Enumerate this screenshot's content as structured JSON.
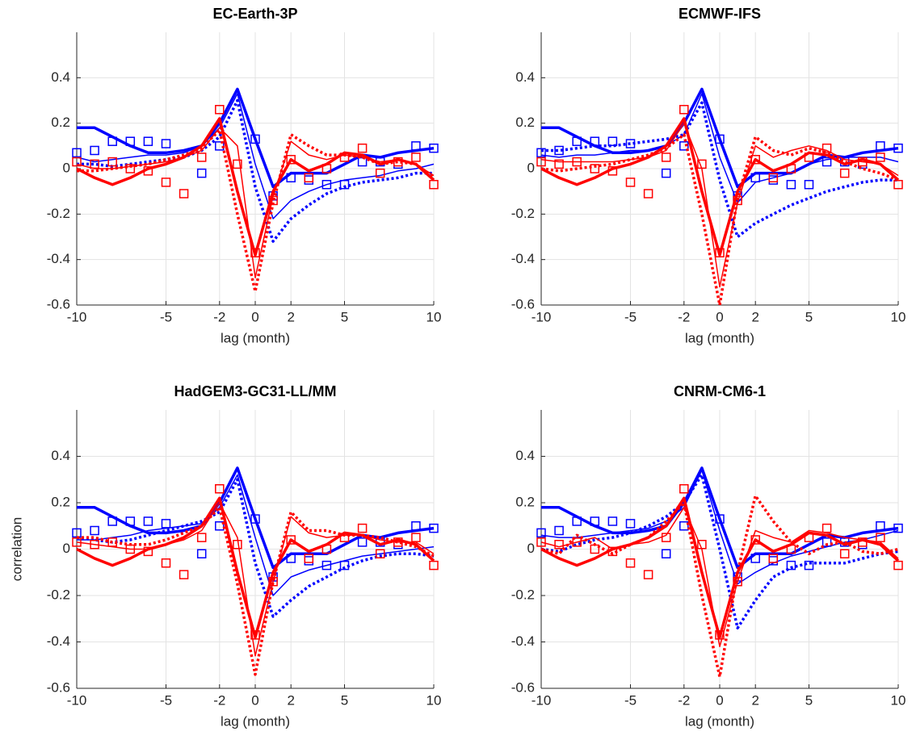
{
  "chart_data": [
    {
      "type": "line",
      "title": "EC-Earth-3P",
      "xlabel": "lag (month)",
      "x": [
        -10,
        -9,
        -8,
        -7,
        -6,
        -5,
        -4,
        -3,
        -2,
        -1,
        0,
        1,
        2,
        3,
        4,
        5,
        6,
        7,
        8,
        9,
        10
      ],
      "xlim": [
        -10,
        10
      ],
      "ylim": [
        -0.6,
        0.6
      ],
      "xticks": [
        -10,
        -5,
        -2,
        0,
        2,
        5,
        10
      ],
      "yticks": [
        -0.6,
        -0.4,
        -0.2,
        0,
        0.2,
        0.4
      ],
      "grid": true,
      "series": [
        {
          "color": "#0000ff",
          "width": 3.5,
          "dash": "solid",
          "values": [
            0.18,
            0.18,
            0.14,
            0.1,
            0.07,
            0.07,
            0.08,
            0.1,
            0.2,
            0.35,
            0.13,
            -0.08,
            -0.02,
            -0.02,
            -0.02,
            0.02,
            0.06,
            0.05,
            0.07,
            0.08,
            0.09
          ]
        },
        {
          "color": "#0000ff",
          "width": 1.5,
          "dash": "solid",
          "values": [
            0.05,
            0.03,
            0.04,
            0.05,
            0.06,
            0.06,
            0.07,
            0.1,
            0.18,
            0.33,
            0.02,
            -0.22,
            -0.14,
            -0.1,
            -0.07,
            -0.05,
            -0.04,
            -0.03,
            -0.01,
            0,
            0.02
          ]
        },
        {
          "color": "#0000ff",
          "width": 3.5,
          "dash": "dotted",
          "values": [
            0.02,
            0.02,
            0.01,
            0.02,
            0.03,
            0.04,
            0.05,
            0.08,
            0.14,
            0.3,
            -0.08,
            -0.32,
            -0.22,
            -0.16,
            -0.11,
            -0.08,
            -0.06,
            -0.05,
            -0.04,
            -0.02,
            -0.02
          ]
        },
        {
          "color": "#0000ff",
          "marker": "square",
          "values": [
            0.07,
            0.08,
            0.12,
            0.12,
            0.12,
            0.11,
            null,
            -0.02,
            0.1,
            null,
            0.13,
            -0.12,
            -0.04,
            -0.05,
            -0.07,
            -0.07,
            0.03,
            0.03,
            0.02,
            0.1,
            0.09
          ]
        },
        {
          "color": "#ff0000",
          "width": 3.5,
          "dash": "solid",
          "values": [
            0,
            -0.04,
            -0.07,
            -0.04,
            0,
            0.02,
            0.05,
            0.1,
            0.22,
            -0.1,
            -0.38,
            -0.1,
            0.04,
            -0.01,
            0.02,
            0.07,
            0.06,
            0.02,
            0.04,
            0.02,
            -0.05
          ]
        },
        {
          "color": "#ff0000",
          "width": 1.5,
          "dash": "solid",
          "values": [
            0.02,
            0,
            0,
            0.01,
            0.02,
            0.03,
            0.05,
            0.08,
            0.18,
            0.1,
            -0.48,
            -0.12,
            0.12,
            0.06,
            0.04,
            0.06,
            0.05,
            0.03,
            0.04,
            0.02,
            -0.03
          ]
        },
        {
          "color": "#ff0000",
          "width": 3.5,
          "dash": "dotted",
          "values": [
            -0.01,
            -0.01,
            0,
            0.01,
            0.02,
            0.04,
            0.06,
            0.09,
            0.17,
            -0.2,
            -0.54,
            -0.15,
            0.15,
            0.1,
            0.06,
            0.06,
            0.05,
            0.02,
            0.03,
            0.02,
            -0.04
          ]
        },
        {
          "color": "#ff0000",
          "marker": "square",
          "values": [
            0.03,
            0.02,
            0.03,
            0,
            -0.01,
            -0.06,
            -0.11,
            0.05,
            0.26,
            0.02,
            -0.37,
            -0.14,
            0.04,
            -0.04,
            0,
            0.05,
            0.09,
            -0.02,
            0.03,
            0.05,
            -0.07
          ]
        }
      ]
    },
    {
      "type": "line",
      "title": "ECMWF-IFS",
      "xlabel": "lag (month)",
      "x": [
        -10,
        -9,
        -8,
        -7,
        -6,
        -5,
        -4,
        -3,
        -2,
        -1,
        0,
        1,
        2,
        3,
        4,
        5,
        6,
        7,
        8,
        9,
        10
      ],
      "xlim": [
        -10,
        10
      ],
      "ylim": [
        -0.6,
        0.6
      ],
      "xticks": [
        -10,
        -5,
        -2,
        0,
        2,
        5,
        10
      ],
      "yticks": [
        -0.6,
        -0.4,
        -0.2,
        0,
        0.2,
        0.4
      ],
      "grid": true,
      "series": [
        {
          "color": "#0000ff",
          "width": 3.5,
          "dash": "solid",
          "values": [
            0.18,
            0.18,
            0.14,
            0.1,
            0.07,
            0.07,
            0.08,
            0.1,
            0.2,
            0.35,
            0.13,
            -0.08,
            -0.02,
            -0.02,
            -0.02,
            0.02,
            0.06,
            0.05,
            0.07,
            0.08,
            0.09
          ]
        },
        {
          "color": "#0000ff",
          "width": 1.5,
          "dash": "solid",
          "values": [
            0.06,
            0.05,
            0.06,
            0.06,
            0.07,
            0.08,
            0.08,
            0.1,
            0.15,
            0.33,
            0.05,
            -0.15,
            -0.06,
            -0.04,
            -0.02,
            0.02,
            0.04,
            0.05,
            0.05,
            0.05,
            0.03
          ]
        },
        {
          "color": "#0000ff",
          "width": 3.5,
          "dash": "dotted",
          "values": [
            0.08,
            0.08,
            0.09,
            0.1,
            0.1,
            0.11,
            0.12,
            0.13,
            0.15,
            0.29,
            -0.05,
            -0.3,
            -0.24,
            -0.2,
            -0.16,
            -0.13,
            -0.1,
            -0.08,
            -0.06,
            -0.05,
            -0.05
          ]
        },
        {
          "color": "#0000ff",
          "marker": "square",
          "values": [
            0.07,
            0.08,
            0.12,
            0.12,
            0.12,
            0.11,
            null,
            -0.02,
            0.1,
            null,
            0.13,
            -0.12,
            -0.04,
            -0.05,
            -0.07,
            -0.07,
            0.03,
            0.03,
            0.02,
            0.1,
            0.09
          ]
        },
        {
          "color": "#ff0000",
          "width": 3.5,
          "dash": "solid",
          "values": [
            0,
            -0.04,
            -0.07,
            -0.04,
            0,
            0.02,
            0.05,
            0.1,
            0.22,
            -0.1,
            -0.38,
            -0.1,
            0.04,
            -0.01,
            0.02,
            0.07,
            0.06,
            0.02,
            0.04,
            0.02,
            -0.05
          ]
        },
        {
          "color": "#ff0000",
          "width": 1.5,
          "dash": "solid",
          "values": [
            0.04,
            0.03,
            0.03,
            0.03,
            0.03,
            0.04,
            0.05,
            0.08,
            0.2,
            0,
            -0.52,
            -0.15,
            0.1,
            0.05,
            0.08,
            0.1,
            0.08,
            0.04,
            0.03,
            0.02,
            -0.03
          ]
        },
        {
          "color": "#ff0000",
          "width": 3.5,
          "dash": "dotted",
          "values": [
            0,
            -0.01,
            0,
            0.01,
            0.02,
            0.04,
            0.06,
            0.09,
            0.15,
            -0.2,
            -0.6,
            -0.13,
            0.14,
            0.08,
            0.06,
            0.09,
            0.07,
            0.03,
            0,
            -0.02,
            -0.05
          ]
        },
        {
          "color": "#ff0000",
          "marker": "square",
          "values": [
            0.03,
            0.02,
            0.03,
            0,
            -0.01,
            -0.06,
            -0.11,
            0.05,
            0.26,
            0.02,
            -0.37,
            -0.14,
            0.04,
            -0.04,
            0,
            0.05,
            0.09,
            -0.02,
            0.03,
            0.05,
            -0.07
          ]
        }
      ]
    },
    {
      "type": "line",
      "title": "HadGEM3-GC31-LL/MM",
      "xlabel": "lag (month)",
      "ylabel": "correlation",
      "x": [
        -10,
        -9,
        -8,
        -7,
        -6,
        -5,
        -4,
        -3,
        -2,
        -1,
        0,
        1,
        2,
        3,
        4,
        5,
        6,
        7,
        8,
        9,
        10
      ],
      "xlim": [
        -10,
        10
      ],
      "ylim": [
        -0.6,
        0.6
      ],
      "xticks": [
        -10,
        -5,
        -2,
        0,
        2,
        5,
        10
      ],
      "yticks": [
        -0.6,
        -0.4,
        -0.2,
        0,
        0.2,
        0.4
      ],
      "grid": true,
      "series": [
        {
          "color": "#0000ff",
          "width": 3.5,
          "dash": "solid",
          "values": [
            0.18,
            0.18,
            0.14,
            0.1,
            0.07,
            0.07,
            0.08,
            0.1,
            0.2,
            0.35,
            0.13,
            -0.08,
            -0.02,
            -0.02,
            -0.02,
            0.02,
            0.06,
            0.05,
            0.07,
            0.08,
            0.09
          ]
        },
        {
          "color": "#0000ff",
          "width": 1.5,
          "dash": "solid",
          "values": [
            0.04,
            0.04,
            0.05,
            0.06,
            0.08,
            0.09,
            0.1,
            0.11,
            0.18,
            0.32,
            0.05,
            -0.2,
            -0.12,
            -0.09,
            -0.07,
            -0.05,
            -0.03,
            -0.02,
            -0.01,
            0,
            0.01
          ]
        },
        {
          "color": "#0000ff",
          "width": 3.5,
          "dash": "dotted",
          "values": [
            0.05,
            0.04,
            0.03,
            0.04,
            0.06,
            0.08,
            0.1,
            0.12,
            0.16,
            0.3,
            -0.06,
            -0.29,
            -0.22,
            -0.16,
            -0.12,
            -0.08,
            -0.05,
            -0.03,
            -0.02,
            -0.02,
            -0.03
          ]
        },
        {
          "color": "#0000ff",
          "marker": "square",
          "values": [
            0.07,
            0.08,
            0.12,
            0.12,
            0.12,
            0.11,
            null,
            -0.02,
            0.1,
            null,
            0.13,
            -0.12,
            -0.04,
            -0.05,
            -0.07,
            -0.07,
            0.03,
            0.03,
            0.02,
            0.1,
            0.09
          ]
        },
        {
          "color": "#ff0000",
          "width": 3.5,
          "dash": "solid",
          "values": [
            0,
            -0.04,
            -0.07,
            -0.04,
            0,
            0.02,
            0.05,
            0.1,
            0.22,
            -0.1,
            -0.38,
            -0.1,
            0.04,
            -0.01,
            0.02,
            0.07,
            0.06,
            0.02,
            0.04,
            0.02,
            -0.05
          ]
        },
        {
          "color": "#ff0000",
          "width": 1.5,
          "dash": "solid",
          "values": [
            0.03,
            0.02,
            0.01,
            0,
            0,
            0.02,
            0.04,
            0.08,
            0.2,
            0.05,
            -0.46,
            -0.14,
            0.14,
            0.07,
            0.05,
            0.06,
            0.06,
            0.04,
            0.03,
            0.03,
            -0.02
          ]
        },
        {
          "color": "#ff0000",
          "width": 3.5,
          "dash": "dotted",
          "values": [
            0.05,
            0.05,
            0.03,
            0.02,
            0.02,
            0.04,
            0.07,
            0.1,
            0.18,
            -0.15,
            -0.54,
            -0.14,
            0.16,
            0.08,
            0.08,
            0.06,
            0.06,
            0.05,
            0.03,
            0.01,
            -0.03
          ]
        },
        {
          "color": "#ff0000",
          "marker": "square",
          "values": [
            0.03,
            0.02,
            0.03,
            0,
            -0.01,
            -0.06,
            -0.11,
            0.05,
            0.26,
            0.02,
            -0.37,
            -0.14,
            0.04,
            -0.04,
            0,
            0.05,
            0.09,
            -0.02,
            0.03,
            0.05,
            -0.07
          ]
        }
      ]
    },
    {
      "type": "line",
      "title": "CNRM-CM6-1",
      "xlabel": "lag (month)",
      "x": [
        -10,
        -9,
        -8,
        -7,
        -6,
        -5,
        -4,
        -3,
        -2,
        -1,
        0,
        1,
        2,
        3,
        4,
        5,
        6,
        7,
        8,
        9,
        10
      ],
      "xlim": [
        -10,
        10
      ],
      "ylim": [
        -0.6,
        0.6
      ],
      "xticks": [
        -10,
        -5,
        -2,
        0,
        2,
        5,
        10
      ],
      "yticks": [
        -0.6,
        -0.4,
        -0.2,
        0,
        0.2,
        0.4
      ],
      "grid": true,
      "series": [
        {
          "color": "#0000ff",
          "width": 3.5,
          "dash": "solid",
          "values": [
            0.18,
            0.18,
            0.14,
            0.1,
            0.07,
            0.07,
            0.08,
            0.1,
            0.2,
            0.35,
            0.13,
            -0.08,
            -0.02,
            -0.02,
            -0.02,
            0.02,
            0.06,
            0.05,
            0.07,
            0.08,
            0.09
          ]
        },
        {
          "color": "#0000ff",
          "width": 1.5,
          "dash": "solid",
          "values": [
            0.06,
            0.05,
            0.05,
            0.06,
            0.07,
            0.08,
            0.09,
            0.12,
            0.18,
            0.34,
            0.08,
            -0.15,
            -0.1,
            -0.06,
            -0.03,
            -0.01,
            0.01,
            0.03,
            0.04,
            0.06,
            0.08
          ]
        },
        {
          "color": "#0000ff",
          "width": 3.5,
          "dash": "dotted",
          "values": [
            0,
            -0.01,
            0.02,
            0.04,
            0.05,
            0.07,
            0.1,
            0.14,
            0.2,
            0.32,
            0,
            -0.34,
            -0.22,
            -0.12,
            -0.08,
            -0.06,
            -0.06,
            -0.06,
            -0.04,
            -0.02,
            -0.01
          ]
        },
        {
          "color": "#0000ff",
          "marker": "square",
          "values": [
            0.07,
            0.08,
            0.12,
            0.12,
            0.12,
            0.11,
            null,
            -0.02,
            0.1,
            null,
            0.13,
            -0.12,
            -0.04,
            -0.05,
            -0.07,
            -0.07,
            0.03,
            0.03,
            0.02,
            0.1,
            0.09
          ]
        },
        {
          "color": "#ff0000",
          "width": 3.5,
          "dash": "solid",
          "values": [
            0,
            -0.04,
            -0.07,
            -0.04,
            0,
            0.02,
            0.05,
            0.1,
            0.22,
            -0.1,
            -0.38,
            -0.1,
            0.04,
            -0.01,
            0.02,
            0.07,
            0.06,
            0.02,
            0.04,
            0.02,
            -0.05
          ]
        },
        {
          "color": "#ff0000",
          "width": 1.5,
          "dash": "solid",
          "values": [
            0.03,
            0.01,
            0.03,
            0.05,
            0,
            0.02,
            0.03,
            0.06,
            0.18,
            0,
            -0.42,
            -0.14,
            0.08,
            0.05,
            0.03,
            0.08,
            0.07,
            0.05,
            0.04,
            0.03,
            -0.04
          ]
        },
        {
          "color": "#ff0000",
          "width": 3.5,
          "dash": "dotted",
          "values": [
            0,
            -0.02,
            0.06,
            0.02,
            -0.02,
            0.02,
            0.05,
            0.12,
            0.2,
            -0.2,
            -0.55,
            -0.1,
            0.23,
            0.12,
            0.03,
            -0.02,
            0.02,
            0.03,
            -0.01,
            -0.02,
            0
          ]
        },
        {
          "color": "#ff0000",
          "marker": "square",
          "values": [
            0.03,
            0.02,
            0.03,
            0,
            -0.01,
            -0.06,
            -0.11,
            0.05,
            0.26,
            0.02,
            -0.37,
            -0.14,
            0.04,
            -0.04,
            0,
            0.05,
            0.09,
            -0.02,
            0.03,
            0.05,
            -0.07
          ]
        }
      ]
    }
  ]
}
